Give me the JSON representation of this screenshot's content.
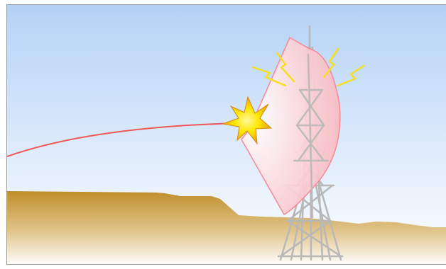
{
  "illustration": {
    "colors": {
      "sky_top": "#b4d2f6",
      "sky_bottom": "#ffffff",
      "ground_top": "#c08f2c",
      "ground_bottom": "#ffffff",
      "beam_line": "#f05858",
      "dish_edge": "#f48a95",
      "dish_fill": "#f9b6bd",
      "tower": "#b8b8b8",
      "lightning": "#f4e020",
      "burst_outer": "#e2a21a",
      "burst_inner": "#ffe800"
    },
    "icons": [
      "lightning-bolt-icon",
      "explosion-burst-icon"
    ]
  }
}
